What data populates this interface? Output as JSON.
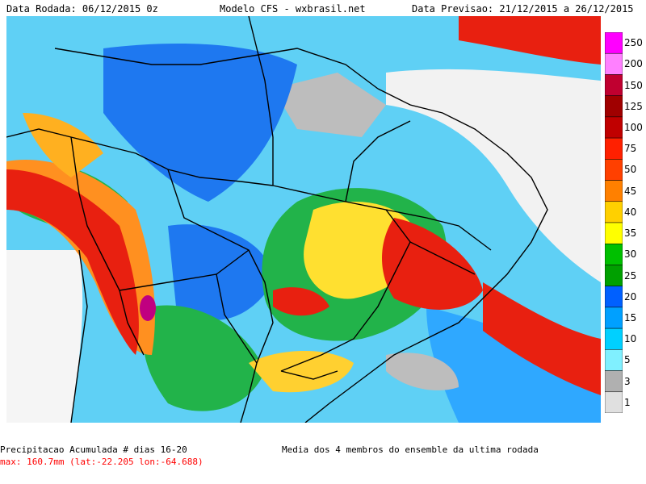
{
  "header": {
    "run_date": "Data Rodada: 06/12/2015 0z",
    "model": "Modelo CFS - wxbrasil.net",
    "forecast_date": "Data Previsao: 21/12/2015 a 26/12/2015"
  },
  "legend": {
    "levels": [
      "250",
      "200",
      "150",
      "125",
      "100",
      "75",
      "50",
      "45",
      "40",
      "35",
      "30",
      "25",
      "20",
      "15",
      "10",
      "5",
      "3",
      "1"
    ],
    "colors": [
      "#ff00ff",
      "#ff80ff",
      "#c00030",
      "#a00000",
      "#c00000",
      "#ff2000",
      "#ff4000",
      "#ff8000",
      "#ffd000",
      "#ffff00",
      "#00c000",
      "#00a000",
      "#0060ff",
      "#00a0ff",
      "#00d0ff",
      "#80f0ff",
      "#b0b0b0",
      "#e0e0e0"
    ]
  },
  "footer": {
    "title": "Precipitacao Acumulada # dias 16-20",
    "max_text": "max: 160.7mm (lat:-22.205 lon:-64.688)",
    "max_color": "#ff0000",
    "subtitle": "Media dos 4 membros do ensemble da ultima rodada"
  }
}
